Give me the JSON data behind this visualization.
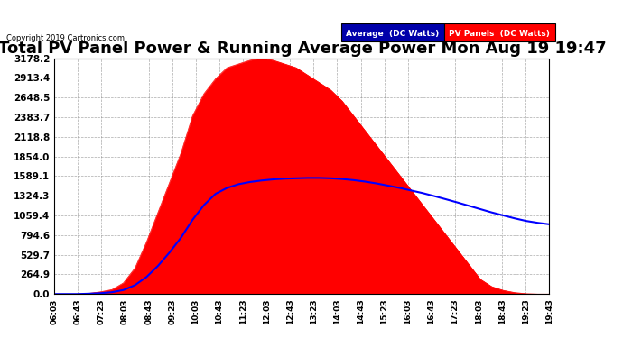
{
  "title": "Total PV Panel Power & Running Average Power Mon Aug 19 19:47",
  "copyright": "Copyright 2019 Cartronics.com",
  "legend_labels": [
    "Average (DC Watts)",
    "PV Panels (DC Watts)"
  ],
  "legend_colors": [
    "#0000ff",
    "#ff0000"
  ],
  "legend_bg_colors": [
    "#0000aa",
    "#ff0000"
  ],
  "yticks": [
    0.0,
    264.9,
    529.7,
    794.6,
    1059.4,
    1324.3,
    1589.1,
    1854.0,
    2118.8,
    2383.7,
    2648.5,
    2913.4,
    3178.2
  ],
  "ytick_labels": [
    "0.0",
    "264.9",
    "529.7",
    "794.6",
    "1059.4",
    "1324.3",
    "1589.1",
    "1854.0",
    "2118.8",
    "2383.7",
    "2648.5",
    "2913.4",
    "3178.2"
  ],
  "xtick_labels": [
    "06:03",
    "06:43",
    "07:23",
    "08:03",
    "08:43",
    "09:23",
    "10:03",
    "10:43",
    "11:23",
    "12:03",
    "12:43",
    "13:23",
    "14:03",
    "14:43",
    "15:23",
    "16:03",
    "16:43",
    "17:23",
    "18:03",
    "18:43",
    "19:23",
    "19:43"
  ],
  "pv_data": [
    0,
    0,
    0,
    10,
    30,
    60,
    150,
    350,
    700,
    1100,
    1500,
    1900,
    2400,
    2700,
    2900,
    3050,
    3100,
    3150,
    3178,
    3150,
    3100,
    3050,
    2950,
    2850,
    2750,
    2600,
    2400,
    2200,
    2000,
    1800,
    1600,
    1400,
    1200,
    1000,
    800,
    600,
    400,
    200,
    100,
    50,
    20,
    5,
    0,
    0
  ],
  "avg_data": [
    0,
    0,
    0,
    5,
    12,
    25,
    55,
    120,
    230,
    380,
    560,
    760,
    1000,
    1200,
    1350,
    1430,
    1480,
    1510,
    1530,
    1545,
    1555,
    1560,
    1565,
    1565,
    1560,
    1550,
    1535,
    1515,
    1490,
    1460,
    1430,
    1395,
    1360,
    1320,
    1278,
    1235,
    1190,
    1145,
    1100,
    1060,
    1020,
    985,
    960,
    940
  ],
  "panel_color": "#ff0000",
  "avg_color": "#0000ff",
  "bg_color": "#ffffff",
  "grid_color": "#888888",
  "title_fontsize": 13,
  "ymax": 3178.2,
  "ymin": 0.0
}
